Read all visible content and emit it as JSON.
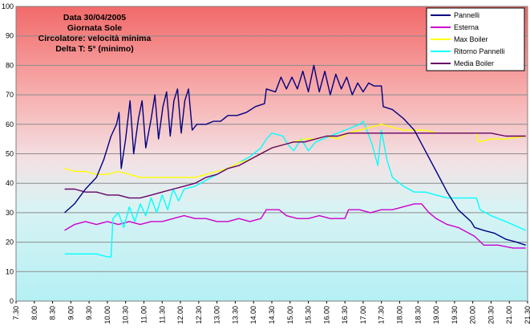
{
  "chart_data": {
    "type": "line",
    "title": "",
    "xlabel": "",
    "ylabel": "",
    "ylim": [
      0,
      100
    ],
    "y_ticks": [
      "0",
      "10",
      "20",
      "30",
      "40",
      "50",
      "60",
      "70",
      "80",
      "90",
      "100"
    ],
    "x_ticks": [
      "7.30",
      "8.00",
      "8.30",
      "9.00",
      "9.30",
      "10.00",
      "10.30",
      "11.00",
      "11.30",
      "12.00",
      "12.30",
      "13.00",
      "13.30",
      "14.00",
      "14.30",
      "15.00",
      "15.30",
      "16.00",
      "16.30",
      "17.00",
      "17.30",
      "18.00",
      "18.30",
      "19.00",
      "19.30",
      "20.00",
      "20.30",
      "21.00",
      "21.30"
    ],
    "x_range_hours": [
      7.5,
      21.5
    ],
    "grid": "horizontal",
    "background": "vertical gradient from red/pink at top to light cyan at bottom",
    "legend_position": "top-right",
    "annotation": {
      "lines": [
        "Data 30/04/2005",
        "Giornata Sole",
        "Circolatore: velocità minima",
        "Delta T: 5° (minimo)"
      ]
    },
    "series": [
      {
        "name": "Pannelli",
        "color": "#000080",
        "points": [
          [
            8.83,
            30
          ],
          [
            9.1,
            33
          ],
          [
            9.4,
            38
          ],
          [
            9.7,
            42
          ],
          [
            9.9,
            48
          ],
          [
            10.1,
            56
          ],
          [
            10.25,
            60
          ],
          [
            10.32,
            64
          ],
          [
            10.38,
            45
          ],
          [
            10.5,
            55
          ],
          [
            10.62,
            68
          ],
          [
            10.72,
            50
          ],
          [
            10.85,
            62
          ],
          [
            10.95,
            68
          ],
          [
            11.05,
            52
          ],
          [
            11.2,
            62
          ],
          [
            11.3,
            70
          ],
          [
            11.4,
            55
          ],
          [
            11.52,
            66
          ],
          [
            11.62,
            71
          ],
          [
            11.72,
            56
          ],
          [
            11.82,
            68
          ],
          [
            11.92,
            72
          ],
          [
            12.02,
            57
          ],
          [
            12.12,
            68
          ],
          [
            12.22,
            72
          ],
          [
            12.32,
            58
          ],
          [
            12.45,
            60
          ],
          [
            12.7,
            60
          ],
          [
            12.9,
            61
          ],
          [
            13.1,
            61
          ],
          [
            13.3,
            63
          ],
          [
            13.55,
            63
          ],
          [
            13.8,
            64
          ],
          [
            14.05,
            66
          ],
          [
            14.3,
            67
          ],
          [
            14.35,
            72
          ],
          [
            14.6,
            71
          ],
          [
            14.75,
            76
          ],
          [
            14.9,
            72
          ],
          [
            15.05,
            76
          ],
          [
            15.2,
            72
          ],
          [
            15.35,
            78
          ],
          [
            15.5,
            71
          ],
          [
            15.65,
            80
          ],
          [
            15.8,
            71
          ],
          [
            15.95,
            78
          ],
          [
            16.1,
            70
          ],
          [
            16.25,
            77
          ],
          [
            16.4,
            72
          ],
          [
            16.55,
            76
          ],
          [
            16.7,
            70
          ],
          [
            16.85,
            74
          ],
          [
            17.0,
            71
          ],
          [
            17.15,
            74
          ],
          [
            17.3,
            73
          ],
          [
            17.5,
            73
          ],
          [
            17.55,
            66
          ],
          [
            17.8,
            65
          ],
          [
            18.1,
            62
          ],
          [
            18.4,
            58
          ],
          [
            18.7,
            51
          ],
          [
            19.0,
            44
          ],
          [
            19.3,
            37
          ],
          [
            19.6,
            31
          ],
          [
            19.95,
            27
          ],
          [
            20.05,
            25
          ],
          [
            20.3,
            24
          ],
          [
            20.6,
            23
          ],
          [
            20.9,
            21
          ],
          [
            21.2,
            20
          ],
          [
            21.45,
            19
          ]
        ]
      },
      {
        "name": "Esterna",
        "color": "#CC00CC",
        "points": [
          [
            8.83,
            24
          ],
          [
            9.1,
            26
          ],
          [
            9.4,
            27
          ],
          [
            9.7,
            26
          ],
          [
            10.0,
            27
          ],
          [
            10.3,
            26
          ],
          [
            10.6,
            27
          ],
          [
            10.9,
            26
          ],
          [
            11.2,
            27
          ],
          [
            11.5,
            27
          ],
          [
            11.8,
            28
          ],
          [
            12.1,
            29
          ],
          [
            12.4,
            28
          ],
          [
            12.7,
            28
          ],
          [
            13.0,
            27
          ],
          [
            13.3,
            27
          ],
          [
            13.6,
            28
          ],
          [
            13.9,
            27
          ],
          [
            14.2,
            28
          ],
          [
            14.35,
            31
          ],
          [
            14.7,
            31
          ],
          [
            14.9,
            29
          ],
          [
            15.2,
            28
          ],
          [
            15.5,
            28
          ],
          [
            15.8,
            29
          ],
          [
            16.1,
            28
          ],
          [
            16.5,
            28
          ],
          [
            16.6,
            31
          ],
          [
            16.9,
            31
          ],
          [
            17.2,
            30
          ],
          [
            17.5,
            31
          ],
          [
            17.8,
            31
          ],
          [
            18.1,
            32
          ],
          [
            18.4,
            33
          ],
          [
            18.6,
            33
          ],
          [
            18.8,
            30
          ],
          [
            19.0,
            28
          ],
          [
            19.3,
            26
          ],
          [
            19.6,
            25
          ],
          [
            19.9,
            23
          ],
          [
            20.05,
            22
          ],
          [
            20.3,
            19
          ],
          [
            20.7,
            19
          ],
          [
            21.1,
            18
          ],
          [
            21.45,
            18
          ]
        ]
      },
      {
        "name": "Max Boiler",
        "color": "#FFFF00",
        "points": [
          [
            8.83,
            45
          ],
          [
            9.1,
            44
          ],
          [
            9.4,
            44
          ],
          [
            9.7,
            43
          ],
          [
            10.0,
            43
          ],
          [
            10.3,
            44
          ],
          [
            10.6,
            43
          ],
          [
            10.9,
            42
          ],
          [
            11.2,
            42
          ],
          [
            11.5,
            42
          ],
          [
            11.8,
            42
          ],
          [
            12.1,
            42
          ],
          [
            12.4,
            42
          ],
          [
            12.7,
            43
          ],
          [
            13.0,
            44
          ],
          [
            13.3,
            45
          ],
          [
            13.6,
            47
          ],
          [
            13.9,
            48
          ],
          [
            14.2,
            50
          ],
          [
            14.5,
            52
          ],
          [
            14.8,
            53
          ],
          [
            15.1,
            54
          ],
          [
            15.4,
            55
          ],
          [
            15.7,
            55
          ],
          [
            16.0,
            56
          ],
          [
            16.3,
            55
          ],
          [
            16.6,
            57
          ],
          [
            16.9,
            58
          ],
          [
            17.2,
            59
          ],
          [
            17.5,
            60
          ],
          [
            17.8,
            59
          ],
          [
            18.1,
            58
          ],
          [
            18.4,
            58
          ],
          [
            18.7,
            58
          ],
          [
            19.0,
            57
          ],
          [
            19.3,
            57
          ],
          [
            19.6,
            57
          ],
          [
            19.9,
            57
          ],
          [
            20.1,
            57
          ],
          [
            20.15,
            54
          ],
          [
            20.5,
            55
          ],
          [
            20.9,
            55
          ],
          [
            21.45,
            56
          ]
        ]
      },
      {
        "name": "Ritorno Pannelli",
        "color": "#00FFFF",
        "points": [
          [
            8.83,
            16
          ],
          [
            9.1,
            16
          ],
          [
            9.4,
            16
          ],
          [
            9.7,
            16
          ],
          [
            10.0,
            15
          ],
          [
            10.1,
            15
          ],
          [
            10.15,
            28
          ],
          [
            10.3,
            30
          ],
          [
            10.45,
            25
          ],
          [
            10.6,
            32
          ],
          [
            10.75,
            27
          ],
          [
            10.9,
            33
          ],
          [
            11.05,
            29
          ],
          [
            11.2,
            35
          ],
          [
            11.35,
            30
          ],
          [
            11.5,
            36
          ],
          [
            11.65,
            31
          ],
          [
            11.8,
            38
          ],
          [
            11.95,
            34
          ],
          [
            12.1,
            38
          ],
          [
            12.4,
            39
          ],
          [
            12.7,
            41
          ],
          [
            13.0,
            43
          ],
          [
            13.3,
            45
          ],
          [
            13.6,
            47
          ],
          [
            13.9,
            49
          ],
          [
            14.2,
            52
          ],
          [
            14.35,
            55
          ],
          [
            14.5,
            57
          ],
          [
            14.8,
            56
          ],
          [
            14.95,
            53
          ],
          [
            15.1,
            51
          ],
          [
            15.3,
            55
          ],
          [
            15.5,
            51
          ],
          [
            15.7,
            54
          ],
          [
            15.9,
            55
          ],
          [
            16.1,
            56
          ],
          [
            16.3,
            57
          ],
          [
            16.5,
            58
          ],
          [
            16.7,
            59
          ],
          [
            16.9,
            60
          ],
          [
            17.0,
            61
          ],
          [
            17.1,
            58
          ],
          [
            17.25,
            53
          ],
          [
            17.4,
            46
          ],
          [
            17.5,
            58
          ],
          [
            17.65,
            48
          ],
          [
            17.8,
            42
          ],
          [
            18.1,
            39
          ],
          [
            18.4,
            37
          ],
          [
            18.7,
            37
          ],
          [
            19.0,
            36
          ],
          [
            19.3,
            35
          ],
          [
            19.6,
            35
          ],
          [
            19.9,
            35
          ],
          [
            20.1,
            35
          ],
          [
            20.2,
            31
          ],
          [
            20.5,
            29
          ],
          [
            20.9,
            27
          ],
          [
            21.45,
            24
          ]
        ]
      },
      {
        "name": "Media Boiler",
        "color": "#660066",
        "points": [
          [
            8.83,
            38
          ],
          [
            9.1,
            38
          ],
          [
            9.4,
            37
          ],
          [
            9.7,
            37
          ],
          [
            10.0,
            36
          ],
          [
            10.3,
            36
          ],
          [
            10.6,
            35
          ],
          [
            10.9,
            35
          ],
          [
            11.2,
            36
          ],
          [
            11.5,
            37
          ],
          [
            11.8,
            38
          ],
          [
            12.1,
            39
          ],
          [
            12.4,
            40
          ],
          [
            12.7,
            42
          ],
          [
            13.0,
            43
          ],
          [
            13.3,
            45
          ],
          [
            13.6,
            46
          ],
          [
            13.9,
            48
          ],
          [
            14.2,
            50
          ],
          [
            14.5,
            52
          ],
          [
            14.8,
            53
          ],
          [
            15.1,
            54
          ],
          [
            15.4,
            54
          ],
          [
            15.7,
            55
          ],
          [
            16.0,
            56
          ],
          [
            16.3,
            56
          ],
          [
            16.6,
            57
          ],
          [
            16.9,
            57
          ],
          [
            17.2,
            57
          ],
          [
            17.5,
            57
          ],
          [
            17.8,
            57
          ],
          [
            18.1,
            57
          ],
          [
            18.4,
            57
          ],
          [
            18.7,
            57
          ],
          [
            19.0,
            57
          ],
          [
            19.3,
            57
          ],
          [
            19.6,
            57
          ],
          [
            19.9,
            57
          ],
          [
            20.2,
            57
          ],
          [
            20.5,
            57
          ],
          [
            20.9,
            56
          ],
          [
            21.45,
            56
          ]
        ]
      }
    ]
  }
}
